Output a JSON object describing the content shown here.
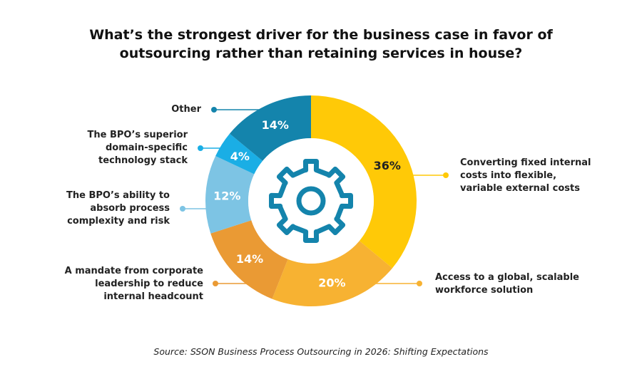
{
  "title_lines": [
    "What’s the strongest driver for the business case in favor of",
    "outsourcing rather than retaining services in house?"
  ],
  "source": "Source: SSON Business Process Outsourcing in 2026: Shifting Expectations",
  "center_icon": "gear-icon",
  "chart_data": {
    "type": "pie",
    "donut": true,
    "start": "top",
    "direction": "clockwise",
    "slices": [
      {
        "label": "Converting fixed internal costs into flexible, variable external costs",
        "label_lines": [
          "Converting fixed internal",
          "costs into flexible,",
          "variable external costs"
        ],
        "value": 36,
        "value_label": "36%",
        "color": "#FFC907",
        "text_color": "#222222"
      },
      {
        "label": "Access to a global, scalable workforce solution",
        "label_lines": [
          "Access to a global, scalable",
          "workforce solution"
        ],
        "value": 20,
        "value_label": "20%",
        "color": "#F7B232",
        "text_color": "#FFFFFF"
      },
      {
        "label": "A mandate from corporate leadership to reduce internal headcount",
        "label_lines": [
          "A mandate from corporate",
          "leadership to reduce",
          "internal headcount"
        ],
        "value": 14,
        "value_label": "14%",
        "color": "#EA9A34",
        "text_color": "#FFFFFF"
      },
      {
        "label": "The BPO’s ability to absorb process complexity and risk",
        "label_lines": [
          "The BPO’s ability to",
          "absorb process",
          "complexity and risk"
        ],
        "value": 12,
        "value_label": "12%",
        "color": "#7DC4E4",
        "text_color": "#FFFFFF"
      },
      {
        "label": "The BPO’s superior domain-specific technology stack",
        "label_lines": [
          "The BPO’s superior",
          "domain-specific",
          "technology stack"
        ],
        "value": 4,
        "value_label": "4%",
        "color": "#1AAEE5",
        "text_color": "#FFFFFF"
      },
      {
        "label": "Other",
        "label_lines": [
          "Other"
        ],
        "value": 14,
        "value_label": "14%",
        "color": "#1484AC",
        "text_color": "#FFFFFF"
      }
    ]
  }
}
